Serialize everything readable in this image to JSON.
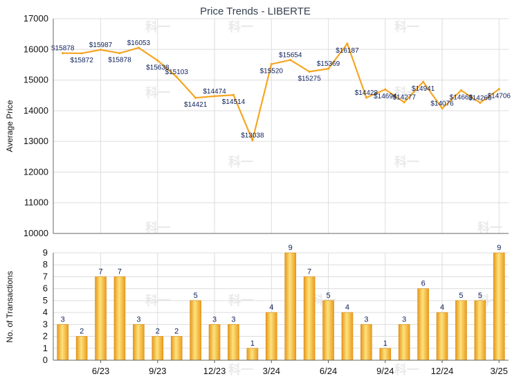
{
  "chart_data": [
    {
      "type": "line",
      "title": "Price Trends - LIBERTE",
      "ylabel": "Average Price",
      "ylim": [
        10000,
        17000
      ],
      "yticks": [
        10000,
        11000,
        12000,
        13000,
        14000,
        15000,
        16000,
        17000
      ],
      "color": "#f5a623",
      "grid": true,
      "series": [
        {
          "values": [
            15878,
            15872,
            15987,
            15878,
            16053,
            15638,
            15103,
            14421,
            14474,
            14514,
            13038,
            15520,
            15654,
            15275,
            15369,
            16187,
            14428,
            14694,
            14277,
            14941,
            14076,
            14663,
            14260,
            14706
          ],
          "labels": [
            "$15878",
            "$15872",
            "$15987",
            "$15878",
            "$16053",
            "$15638",
            "$15103",
            "$14421",
            "$14474",
            "$14514",
            "$13038",
            "$15520",
            "$15654",
            "$15275",
            "$15369",
            "$16187",
            "$14428",
            "$14694",
            "$14277",
            "$14941",
            "$14076",
            "$14663",
            "$14260",
            "$14706"
          ]
        }
      ]
    },
    {
      "type": "bar",
      "ylabel": "No. of Transactions",
      "ylim": [
        0,
        9
      ],
      "yticks": [
        0,
        1,
        2,
        3,
        4,
        5,
        6,
        7,
        8,
        9
      ],
      "color": "#f5a623",
      "grid": true,
      "xticks": [
        "6/23",
        "9/23",
        "12/23",
        "3/24",
        "6/24",
        "9/24",
        "12/24",
        "3/25"
      ],
      "series": [
        {
          "values": [
            3,
            2,
            7,
            7,
            3,
            2,
            2,
            5,
            3,
            3,
            1,
            4,
            9,
            7,
            5,
            4,
            3,
            1,
            3,
            6,
            4,
            5,
            5,
            9
          ]
        }
      ]
    }
  ]
}
